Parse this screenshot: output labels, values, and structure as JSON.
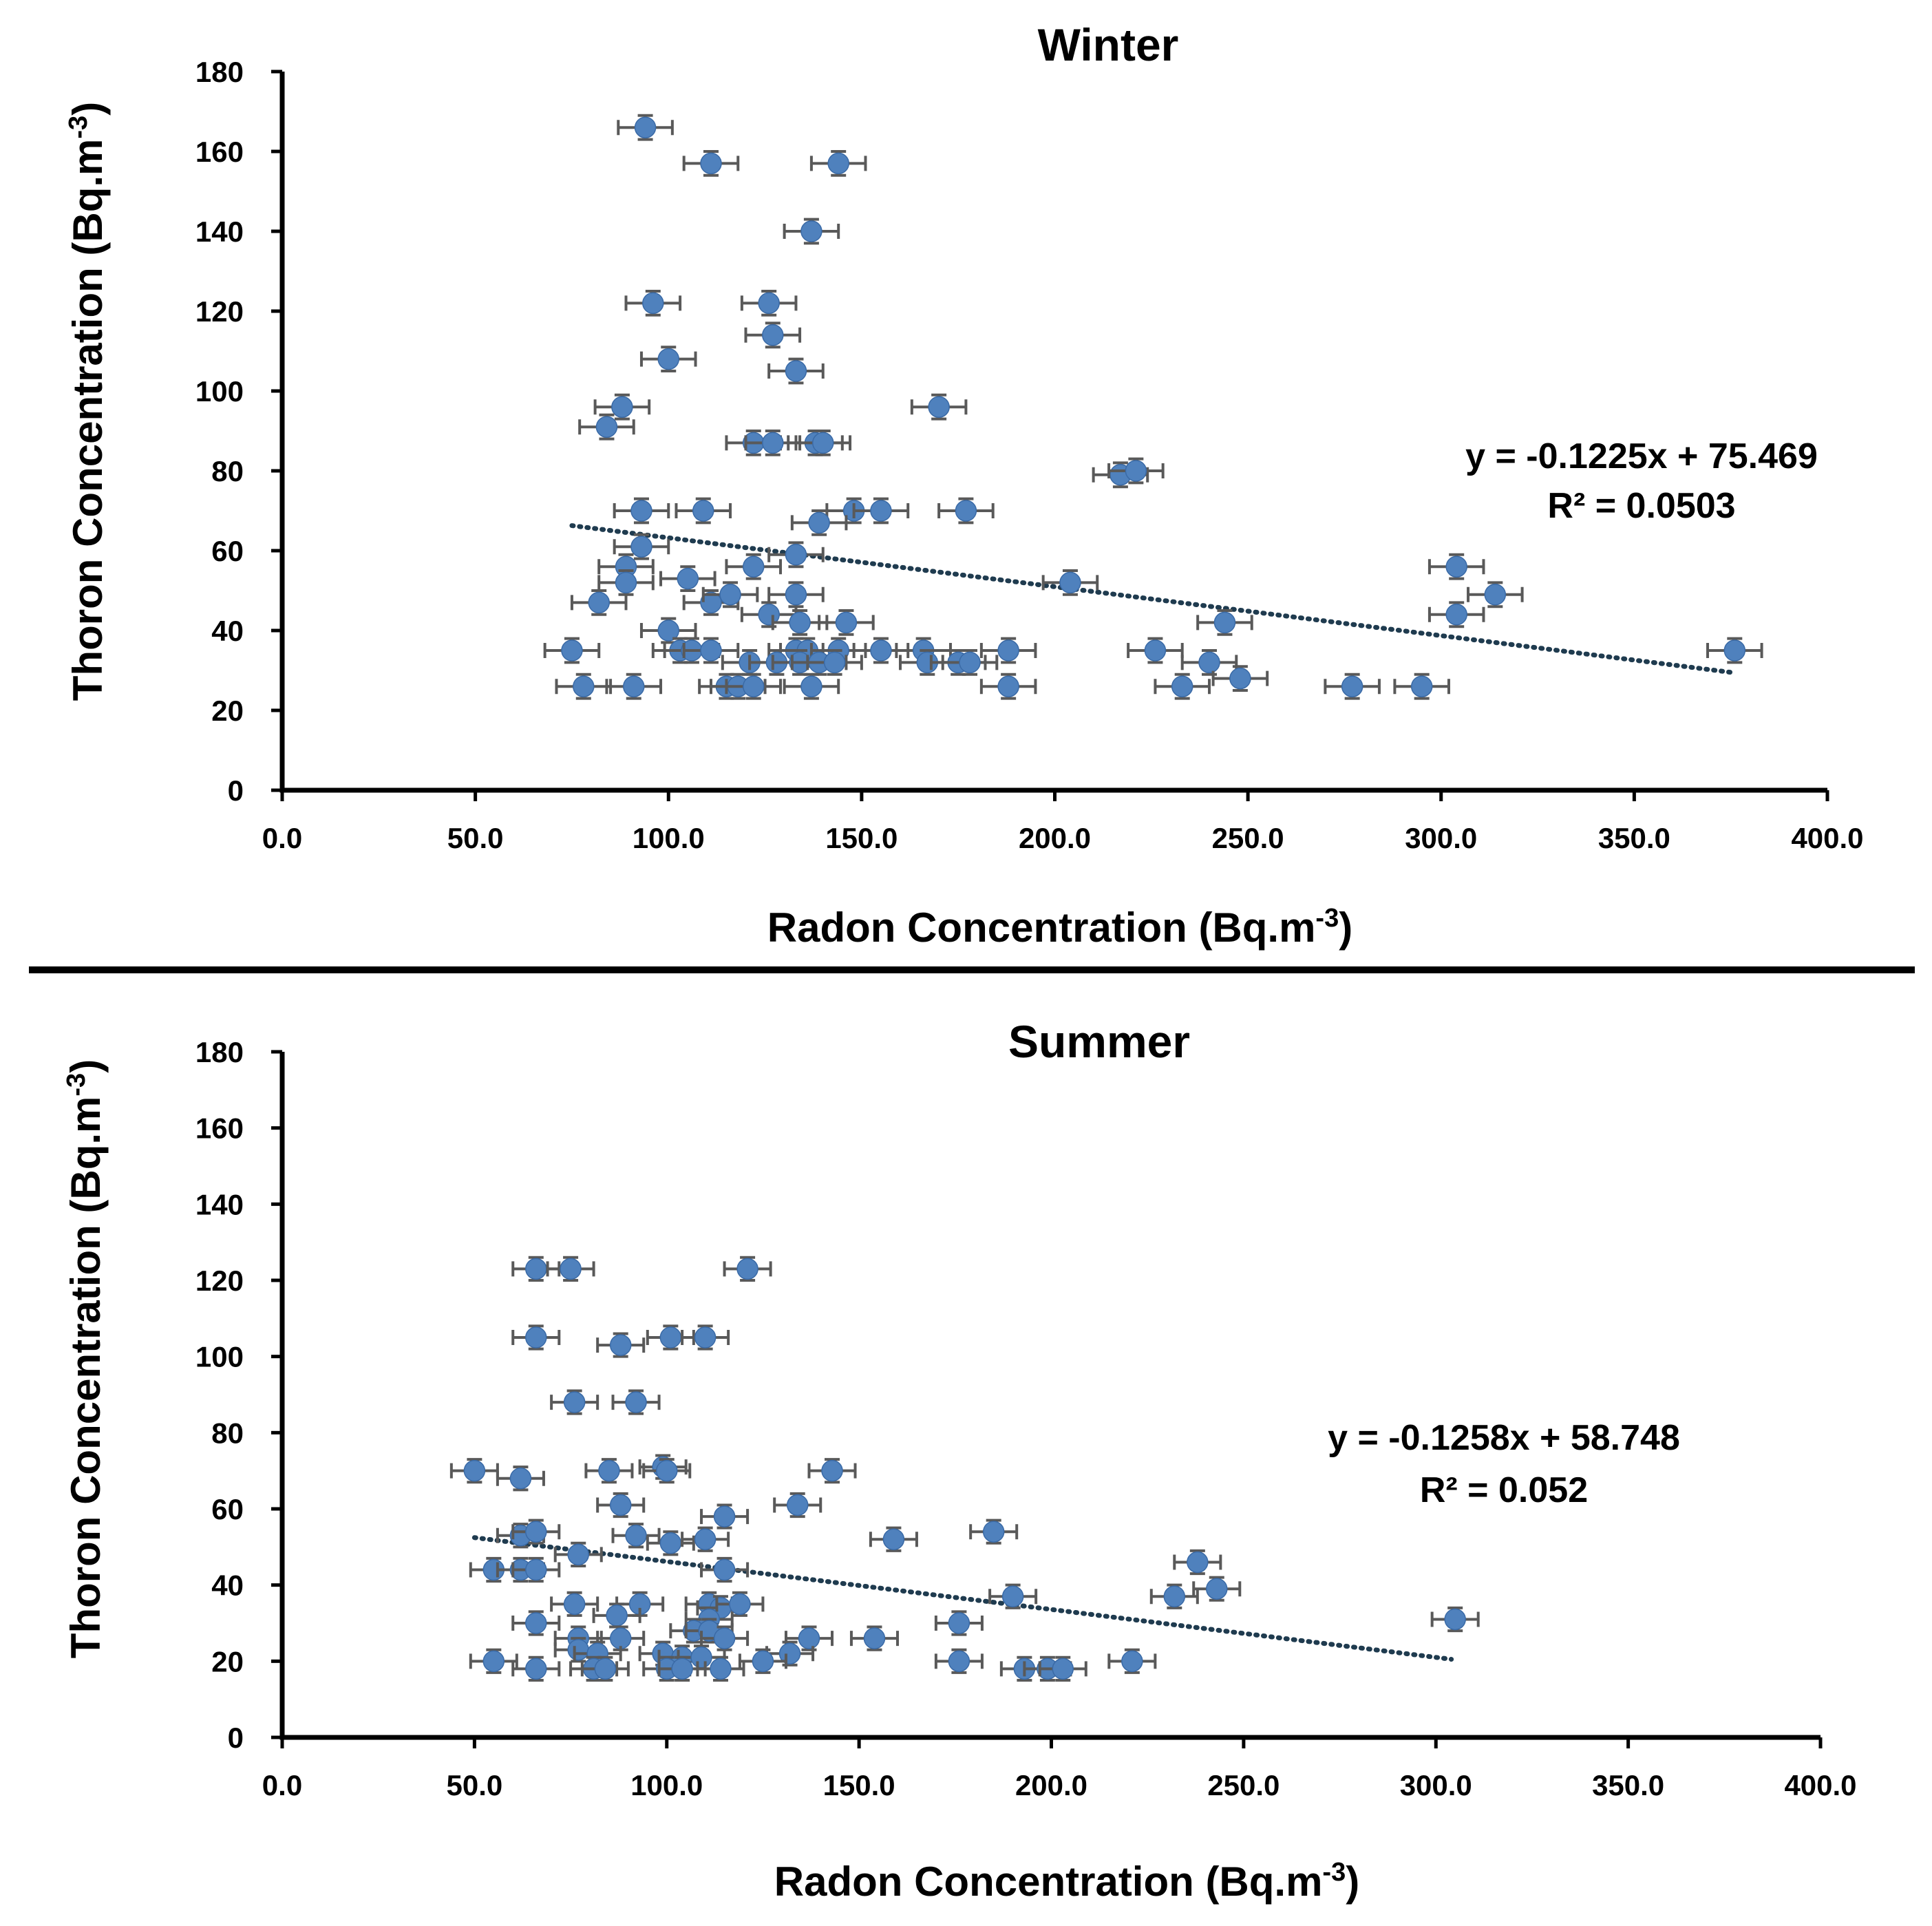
{
  "chart_data": [
    {
      "type": "scatter",
      "title": "Winter",
      "xlabel": "Radon Concentration (Bq.m",
      "xlabel_sup": "-3",
      "xlabel_close": ")",
      "ylabel": "Thoron Concentration (Bq.m",
      "ylabel_sup": "-3",
      "ylabel_close": ")",
      "xlim": [
        0,
        400
      ],
      "ylim": [
        0,
        180
      ],
      "xticks": [
        "0.0",
        "50.0",
        "100.0",
        "150.0",
        "200.0",
        "250.0",
        "300.0",
        "350.0",
        "400.0"
      ],
      "yticks": [
        "0",
        "20",
        "40",
        "60",
        "80",
        "100",
        "120",
        "140",
        "160",
        "180"
      ],
      "x_error": 7,
      "y_error": 3,
      "trendline": {
        "slope": -0.1225,
        "intercept": 75.469,
        "x_range": [
          75,
          376
        ]
      },
      "equation": "y = -0.1225x + 75.469",
      "r2": "R² = 0.0503",
      "points": [
        [
          94,
          166
        ],
        [
          111,
          157
        ],
        [
          144,
          157
        ],
        [
          137,
          140
        ],
        [
          96,
          122
        ],
        [
          126,
          122
        ],
        [
          127,
          114
        ],
        [
          100,
          108
        ],
        [
          133,
          105
        ],
        [
          88,
          96
        ],
        [
          170,
          96
        ],
        [
          84,
          91
        ],
        [
          122,
          87
        ],
        [
          127,
          87
        ],
        [
          138,
          87
        ],
        [
          140,
          87
        ],
        [
          217,
          79
        ],
        [
          221,
          80
        ],
        [
          93,
          70
        ],
        [
          109,
          70
        ],
        [
          148,
          70
        ],
        [
          155,
          70
        ],
        [
          177,
          70
        ],
        [
          139,
          67
        ],
        [
          93,
          61
        ],
        [
          133,
          59
        ],
        [
          89,
          56
        ],
        [
          89,
          52
        ],
        [
          122,
          56
        ],
        [
          304,
          56
        ],
        [
          105,
          53
        ],
        [
          204,
          52
        ],
        [
          82,
          47
        ],
        [
          111,
          47
        ],
        [
          116,
          49
        ],
        [
          133,
          49
        ],
        [
          314,
          49
        ],
        [
          126,
          44
        ],
        [
          304,
          44
        ],
        [
          134,
          42
        ],
        [
          146,
          42
        ],
        [
          244,
          42
        ],
        [
          100,
          40
        ],
        [
          75,
          35
        ],
        [
          103,
          35
        ],
        [
          106,
          35
        ],
        [
          111,
          35
        ],
        [
          133,
          35
        ],
        [
          136,
          35
        ],
        [
          144,
          35
        ],
        [
          155,
          35
        ],
        [
          166,
          35
        ],
        [
          188,
          35
        ],
        [
          226,
          35
        ],
        [
          376,
          35
        ],
        [
          121,
          32
        ],
        [
          128,
          32
        ],
        [
          134,
          32
        ],
        [
          139,
          32
        ],
        [
          143,
          32
        ],
        [
          167,
          32
        ],
        [
          175,
          32
        ],
        [
          178,
          32
        ],
        [
          240,
          32
        ],
        [
          248,
          28
        ],
        [
          78,
          26
        ],
        [
          91,
          26
        ],
        [
          115,
          26
        ],
        [
          118,
          26
        ],
        [
          122,
          26
        ],
        [
          137,
          26
        ],
        [
          188,
          26
        ],
        [
          233,
          26
        ],
        [
          277,
          26
        ],
        [
          295,
          26
        ]
      ]
    },
    {
      "type": "scatter",
      "title": "Summer",
      "xlabel": "Radon Concentration (Bq.m",
      "xlabel_sup": "-3",
      "xlabel_close": ")",
      "ylabel": "Thoron Concentration (Bq.m",
      "ylabel_sup": "-3",
      "ylabel_close": ")",
      "xlim": [
        0,
        400
      ],
      "ylim": [
        0,
        180
      ],
      "xticks": [
        "0.0",
        "50.0",
        "100.0",
        "150.0",
        "200.0",
        "250.0",
        "300.0",
        "350.0",
        "400.0"
      ],
      "yticks": [
        "0",
        "20",
        "40",
        "60",
        "80",
        "100",
        "120",
        "140",
        "160",
        "180"
      ],
      "x_error": 6,
      "y_error": 3,
      "trendline": {
        "slope": -0.1258,
        "intercept": 58.748,
        "x_range": [
          50,
          304
        ]
      },
      "equation": "y = -0.1258x + 58.748",
      "r2": "R² = 0.052",
      "points": [
        [
          66,
          123
        ],
        [
          75,
          123
        ],
        [
          121,
          123
        ],
        [
          66,
          105
        ],
        [
          88,
          103
        ],
        [
          101,
          105
        ],
        [
          110,
          105
        ],
        [
          76,
          88
        ],
        [
          92,
          88
        ],
        [
          50,
          70
        ],
        [
          85,
          70
        ],
        [
          99,
          71
        ],
        [
          100,
          70
        ],
        [
          143,
          70
        ],
        [
          62,
          68
        ],
        [
          88,
          61
        ],
        [
          134,
          61
        ],
        [
          115,
          58
        ],
        [
          62,
          53
        ],
        [
          66,
          54
        ],
        [
          92,
          53
        ],
        [
          101,
          51
        ],
        [
          110,
          52
        ],
        [
          159,
          52
        ],
        [
          185,
          54
        ],
        [
          55,
          44
        ],
        [
          62,
          44
        ],
        [
          66,
          44
        ],
        [
          77,
          48
        ],
        [
          115,
          44
        ],
        [
          238,
          46
        ],
        [
          76,
          35
        ],
        [
          93,
          35
        ],
        [
          111,
          35
        ],
        [
          114,
          34
        ],
        [
          119,
          35
        ],
        [
          190,
          37
        ],
        [
          232,
          37
        ],
        [
          243,
          39
        ],
        [
          305,
          31
        ],
        [
          66,
          30
        ],
        [
          87,
          32
        ],
        [
          111,
          31
        ],
        [
          176,
          30
        ],
        [
          77,
          26
        ],
        [
          88,
          26
        ],
        [
          107,
          28
        ],
        [
          111,
          28
        ],
        [
          115,
          26
        ],
        [
          137,
          26
        ],
        [
          154,
          26
        ],
        [
          77,
          23
        ],
        [
          82,
          22
        ],
        [
          99,
          22
        ],
        [
          104,
          21
        ],
        [
          109,
          21
        ],
        [
          132,
          22
        ],
        [
          55,
          20
        ],
        [
          125,
          20
        ],
        [
          176,
          20
        ],
        [
          221,
          20
        ],
        [
          66,
          18
        ],
        [
          81,
          18
        ],
        [
          84,
          18
        ],
        [
          100,
          18
        ],
        [
          104,
          18
        ],
        [
          114,
          18
        ],
        [
          193,
          18
        ],
        [
          199,
          18
        ],
        [
          203,
          18
        ]
      ]
    }
  ]
}
